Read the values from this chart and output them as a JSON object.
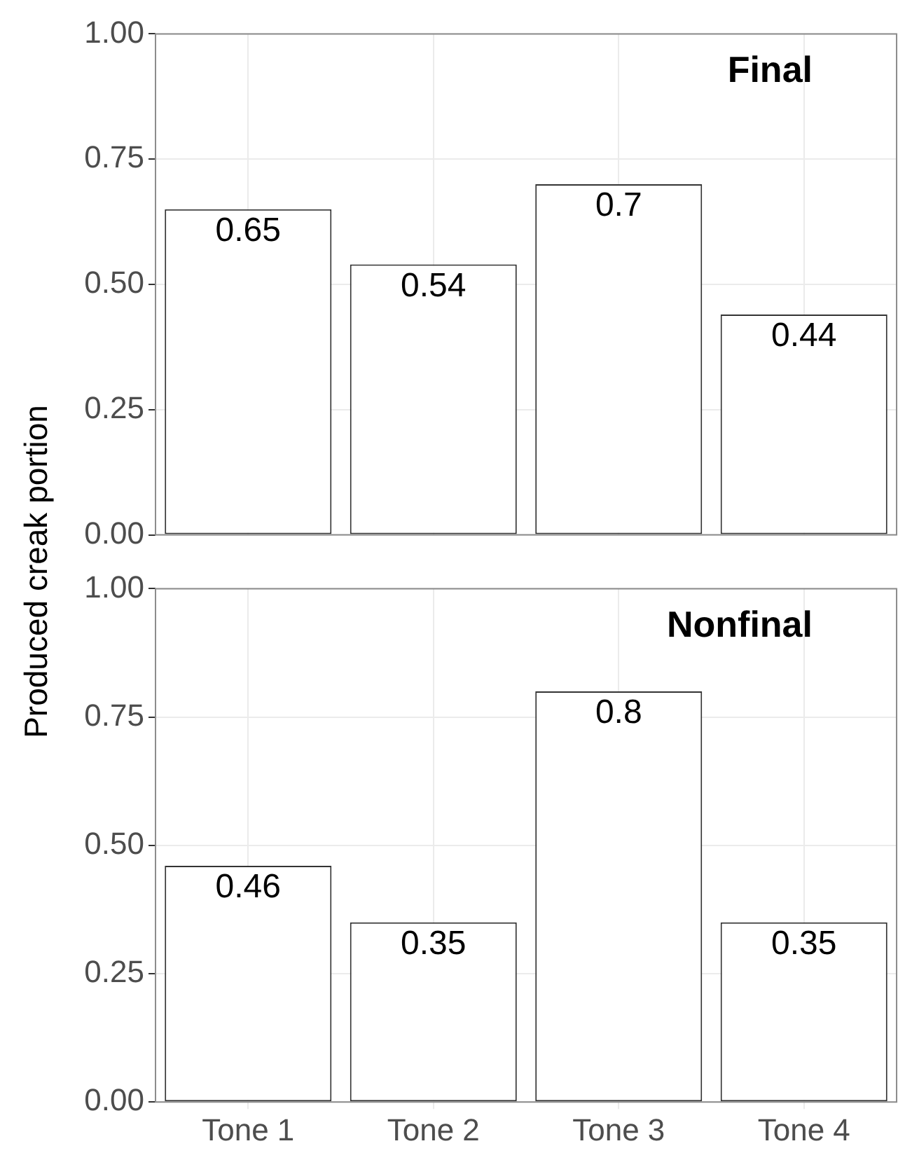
{
  "chart_data": [
    {
      "type": "bar",
      "title": "Final",
      "ylabel": "Produced creak portion",
      "categories": [
        null,
        null,
        null,
        null
      ],
      "values": [
        0.65,
        0.54,
        0.7,
        0.44
      ],
      "color": "#ffffff",
      "ylim": [
        0,
        1
      ],
      "yticks": [
        {
          "value": 0,
          "label": "0.00"
        },
        {
          "value": 0.25,
          "label": "0.25"
        },
        {
          "value": 0.5,
          "label": "0.50"
        },
        {
          "value": 0.75,
          "label": "0.75"
        },
        {
          "value": 1,
          "label": "1.00"
        }
      ],
      "grid": true,
      "data_labels": true,
      "tick_labels": "y"
    },
    {
      "type": "bar",
      "title": "Nonfinal",
      "categories": [
        "Tone 1",
        "Tone 2",
        "Tone 3",
        "Tone 4"
      ],
      "values": [
        0.46,
        0.35,
        0.8,
        0.35
      ],
      "color": "#ffffff",
      "ylim": [
        0,
        1
      ],
      "yticks": [
        {
          "value": 0,
          "label": "0.00"
        },
        {
          "value": 0.25,
          "label": "0.25"
        },
        {
          "value": 0.5,
          "label": "0.50"
        },
        {
          "value": 0.75,
          "label": "0.75"
        },
        {
          "value": 1,
          "label": "1.00"
        }
      ],
      "grid": true,
      "data_labels": true
    }
  ]
}
